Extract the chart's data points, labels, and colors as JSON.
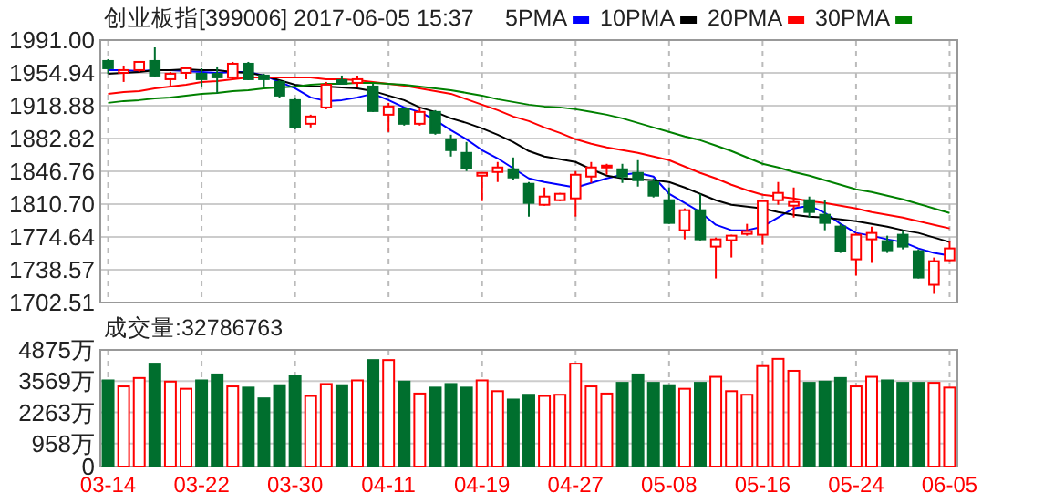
{
  "chart_data": [
    {
      "type": "candlestick",
      "title": "创业板指[399006] 2017-06-05 15:37",
      "categories": [
        null,
        null,
        null,
        null,
        null,
        null,
        null,
        null,
        null,
        null,
        null,
        null,
        null,
        null,
        null,
        null,
        null,
        null,
        null,
        null,
        null,
        null,
        null,
        null,
        null,
        null,
        null,
        null,
        null,
        null,
        null,
        null,
        null,
        null,
        null,
        null,
        null,
        null,
        null,
        null,
        null,
        null,
        null,
        null,
        null,
        null,
        null,
        null,
        null,
        null,
        null,
        null,
        null,
        null,
        null
      ],
      "ohlc": [
        [
          1968,
          1970,
          1954,
          1960
        ],
        [
          1955,
          1963,
          1945,
          1958
        ],
        [
          1958,
          1968,
          1956,
          1967
        ],
        [
          1968,
          1983,
          1950,
          1952
        ],
        [
          1948,
          1956,
          1940,
          1954
        ],
        [
          1955,
          1962,
          1948,
          1960
        ],
        [
          1954,
          1960,
          1940,
          1948
        ],
        [
          1954,
          1962,
          1932,
          1950
        ],
        [
          1950,
          1967,
          1948,
          1965
        ],
        [
          1965,
          1967,
          1947,
          1948
        ],
        [
          1952,
          1954,
          1940,
          1948
        ],
        [
          1945,
          1947,
          1927,
          1930
        ],
        [
          1925,
          1927,
          1893,
          1895
        ],
        [
          1899,
          1909,
          1895,
          1907
        ],
        [
          1917,
          1945,
          1915,
          1942
        ],
        [
          1947,
          1952,
          1942,
          1943
        ],
        [
          1944,
          1952,
          1940,
          1948
        ],
        [
          1940,
          1943,
          1912,
          1913
        ],
        [
          1909,
          1922,
          1890,
          1918
        ],
        [
          1915,
          1917,
          1897,
          1899
        ],
        [
          1899,
          1917,
          1897,
          1912
        ],
        [
          1912,
          1914,
          1887,
          1889
        ],
        [
          1882,
          1887,
          1863,
          1870
        ],
        [
          1867,
          1879,
          1847,
          1850
        ],
        [
          1842,
          1845,
          1814,
          1845
        ],
        [
          1846,
          1857,
          1835,
          1851
        ],
        [
          1849,
          1862,
          1837,
          1840
        ],
        [
          1833,
          1835,
          1797,
          1812
        ],
        [
          1810,
          1829,
          1809,
          1819
        ],
        [
          1815,
          1823,
          1814,
          1822
        ],
        [
          1817,
          1847,
          1797,
          1843
        ],
        [
          1841,
          1857,
          1834,
          1851
        ],
        [
          1851,
          1855,
          1843,
          1853
        ],
        [
          1849,
          1855,
          1834,
          1841
        ],
        [
          1845,
          1859,
          1830,
          1837
        ],
        [
          1835,
          1839,
          1818,
          1820
        ],
        [
          1815,
          1829,
          1789,
          1790
        ],
        [
          1782,
          1806,
          1772,
          1804
        ],
        [
          1804,
          1822,
          1771,
          1772
        ],
        [
          1764,
          1774,
          1729,
          1772
        ],
        [
          1771,
          1777,
          1752,
          1776
        ],
        [
          1778,
          1789,
          1776,
          1781
        ],
        [
          1777,
          1815,
          1766,
          1814
        ],
        [
          1815,
          1835,
          1810,
          1823
        ],
        [
          1809,
          1829,
          1796,
          1813
        ],
        [
          1815,
          1819,
          1796,
          1802
        ],
        [
          1799,
          1815,
          1782,
          1790
        ],
        [
          1786,
          1789,
          1757,
          1759
        ],
        [
          1750,
          1779,
          1732,
          1777
        ],
        [
          1772,
          1786,
          1746,
          1779
        ],
        [
          1770,
          1776,
          1757,
          1760
        ],
        [
          1777,
          1782,
          1761,
          1764
        ],
        [
          1759,
          1761,
          1729,
          1730
        ],
        [
          1722,
          1752,
          1712,
          1748
        ],
        [
          1749,
          1770,
          1748,
          1762
        ]
      ],
      "colors": [
        "#006f2e",
        "#ff0000",
        "#ff0000",
        "#006f2e",
        "#ff0000",
        "#ff0000",
        "#006f2e",
        "#006f2e",
        "#ff0000",
        "#006f2e",
        "#006f2e",
        "#006f2e",
        "#006f2e",
        "#ff0000",
        "#ff0000",
        "#006f2e",
        "#ff0000",
        "#006f2e",
        "#ff0000",
        "#006f2e",
        "#ff0000",
        "#006f2e",
        "#006f2e",
        "#006f2e",
        "#ff0000",
        "#ff0000",
        "#006f2e",
        "#006f2e",
        "#ff0000",
        "#ff0000",
        "#ff0000",
        "#ff0000",
        "#ff0000",
        "#006f2e",
        "#006f2e",
        "#006f2e",
        "#006f2e",
        "#ff0000",
        "#006f2e",
        "#ff0000",
        "#ff0000",
        "#ff0000",
        "#ff0000",
        "#ff0000",
        "#ff0000",
        "#006f2e",
        "#006f2e",
        "#006f2e",
        "#ff0000",
        "#ff0000",
        "#006f2e",
        "#006f2e",
        "#006f2e",
        "#ff0000",
        "#ff0000"
      ],
      "series": [
        {
          "type": "line",
          "name": "5PMA",
          "color": "#0000ff",
          "values": [
            1958,
            1958,
            1957,
            1958,
            1958,
            1957,
            1956,
            1955,
            1956,
            1956,
            1952,
            1945,
            1938,
            1928,
            1924,
            1925,
            1928,
            1932,
            1925,
            1917,
            1912,
            1903,
            1892,
            1882,
            1870,
            1861,
            1850,
            1839,
            1835,
            1832,
            1829,
            1834,
            1839,
            1843,
            1845,
            1841,
            1822,
            1812,
            1802,
            1788,
            1782,
            1782,
            1786,
            1796,
            1806,
            1809,
            1801,
            1789,
            1779,
            1776,
            1772,
            1769,
            1762,
            1757,
            1754
          ]
        },
        {
          "type": "line",
          "name": "10PMA",
          "color": "#000000",
          "values": [
            1954,
            1955,
            1956,
            1958,
            1958,
            1959,
            1958,
            1958,
            1956,
            1955,
            1952,
            1947,
            1942,
            1940,
            1940,
            1939,
            1938,
            1935,
            1930,
            1925,
            1917,
            1912,
            1905,
            1900,
            1894,
            1887,
            1879,
            1869,
            1863,
            1860,
            1857,
            1849,
            1842,
            1839,
            1838,
            1837,
            1835,
            1829,
            1822,
            1815,
            1810,
            1808,
            1806,
            1802,
            1799,
            1797,
            1796,
            1794,
            1792,
            1789,
            1786,
            1782,
            1779,
            1774,
            1769
          ]
        },
        {
          "type": "line",
          "name": "20PMA",
          "color": "#ff0000",
          "values": [
            1932,
            1934,
            1935,
            1938,
            1940,
            1942,
            1945,
            1946,
            1948,
            1950,
            1950,
            1950,
            1950,
            1950,
            1948,
            1948,
            1947,
            1945,
            1943,
            1941,
            1938,
            1935,
            1932,
            1926,
            1920,
            1914,
            1907,
            1902,
            1895,
            1889,
            1882,
            1877,
            1873,
            1870,
            1867,
            1863,
            1859,
            1852,
            1845,
            1839,
            1832,
            1826,
            1821,
            1819,
            1817,
            1814,
            1812,
            1809,
            1806,
            1802,
            1799,
            1796,
            1792,
            1788,
            1784
          ]
        },
        {
          "type": "line",
          "name": "30PMA",
          "color": "#008000",
          "values": [
            1922,
            1924,
            1925,
            1927,
            1928,
            1930,
            1932,
            1933,
            1935,
            1936,
            1938,
            1939,
            1940,
            1942,
            1943,
            1943,
            1944,
            1944,
            1943,
            1942,
            1940,
            1938,
            1936,
            1933,
            1930,
            1926,
            1923,
            1920,
            1918,
            1917,
            1915,
            1912,
            1909,
            1905,
            1900,
            1895,
            1890,
            1885,
            1881,
            1875,
            1869,
            1862,
            1855,
            1851,
            1846,
            1842,
            1837,
            1832,
            1827,
            1824,
            1820,
            1816,
            1811,
            1806,
            1801
          ]
        }
      ],
      "ylim": [
        1702.51,
        1991.0
      ],
      "yticks": [
        {
          "value": 1702.51,
          "label": "1702.51"
        },
        {
          "value": 1738.57,
          "label": "1738.57"
        },
        {
          "value": 1774.64,
          "label": "1774.64"
        },
        {
          "value": 1810.7,
          "label": "1810.70"
        },
        {
          "value": 1846.76,
          "label": "1846.76"
        },
        {
          "value": 1882.82,
          "label": "1882.82"
        },
        {
          "value": 1918.88,
          "label": "1918.88"
        },
        {
          "value": 1954.94,
          "label": "1954.94"
        },
        {
          "value": 1991.0,
          "label": "1991.00"
        }
      ],
      "grid": true,
      "legend": "top",
      "tick_labels": "y"
    },
    {
      "type": "bar",
      "title": "成交量:32786763",
      "categories": [
        "03-14",
        null,
        null,
        null,
        null,
        null,
        "03-22",
        null,
        null,
        null,
        null,
        null,
        "03-30",
        null,
        null,
        null,
        null,
        null,
        "04-11",
        null,
        null,
        null,
        null,
        null,
        "04-19",
        null,
        null,
        null,
        null,
        null,
        "04-27",
        null,
        null,
        null,
        null,
        null,
        "05-08",
        null,
        null,
        null,
        null,
        null,
        "05-16",
        null,
        null,
        null,
        null,
        null,
        "05-24",
        null,
        null,
        null,
        null,
        null,
        "06-05"
      ],
      "values": [
        3600,
        3350,
        3700,
        4300,
        3550,
        3250,
        3600,
        3850,
        3350,
        3300,
        2850,
        3400,
        3800,
        2950,
        3450,
        3400,
        3600,
        4450,
        4450,
        3550,
        3050,
        3300,
        3450,
        3300,
        3600,
        3150,
        2800,
        3000,
        2950,
        3000,
        4300,
        3350,
        3050,
        3500,
        3850,
        3500,
        3400,
        3250,
        3500,
        3750,
        3150,
        3000,
        4200,
        4500,
        4000,
        3500,
        3550,
        3700,
        3350,
        3750,
        3600,
        3500,
        3500,
        3500,
        3300
      ],
      "colors": [
        "#006f2e",
        "#ff0000",
        "#ff0000",
        "#006f2e",
        "#ff0000",
        "#ff0000",
        "#006f2e",
        "#006f2e",
        "#ff0000",
        "#006f2e",
        "#006f2e",
        "#006f2e",
        "#006f2e",
        "#ff0000",
        "#ff0000",
        "#006f2e",
        "#ff0000",
        "#006f2e",
        "#ff0000",
        "#006f2e",
        "#ff0000",
        "#006f2e",
        "#006f2e",
        "#006f2e",
        "#ff0000",
        "#ff0000",
        "#006f2e",
        "#006f2e",
        "#ff0000",
        "#ff0000",
        "#ff0000",
        "#ff0000",
        "#ff0000",
        "#006f2e",
        "#006f2e",
        "#006f2e",
        "#006f2e",
        "#ff0000",
        "#006f2e",
        "#ff0000",
        "#ff0000",
        "#ff0000",
        "#ff0000",
        "#ff0000",
        "#ff0000",
        "#006f2e",
        "#006f2e",
        "#006f2e",
        "#ff0000",
        "#ff0000",
        "#006f2e",
        "#006f2e",
        "#006f2e",
        "#ff0000",
        "#ff0000"
      ],
      "ylim": [
        0,
        4875
      ],
      "yticks": [
        0,
        {
          "value": 958,
          "label": "958万"
        },
        {
          "value": 2263,
          "label": "2263万"
        },
        {
          "value": 3569,
          "label": "3569万"
        },
        {
          "value": 4875,
          "label": "4875万"
        }
      ],
      "grid": true
    }
  ]
}
